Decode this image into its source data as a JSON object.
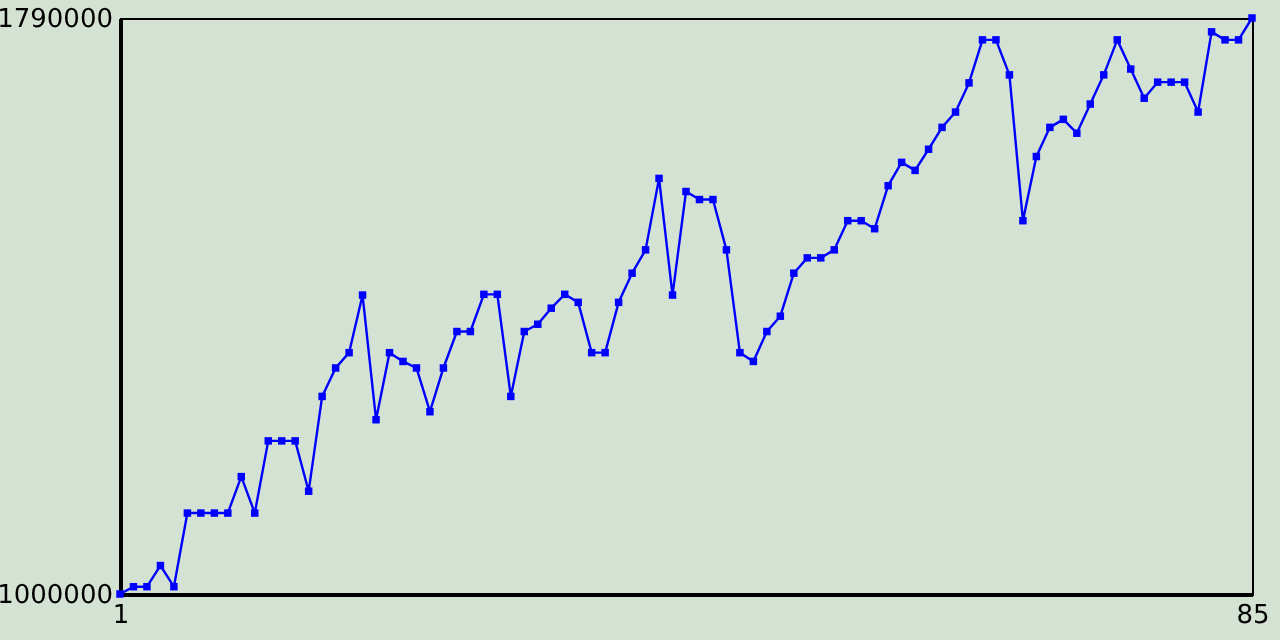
{
  "chart_data": {
    "type": "line",
    "x": [
      1,
      2,
      3,
      4,
      5,
      6,
      7,
      8,
      9,
      10,
      11,
      12,
      13,
      14,
      15,
      16,
      17,
      18,
      19,
      20,
      21,
      22,
      23,
      24,
      25,
      26,
      27,
      28,
      29,
      30,
      31,
      32,
      33,
      34,
      35,
      36,
      37,
      38,
      39,
      40,
      41,
      42,
      43,
      44,
      45,
      46,
      47,
      48,
      49,
      50,
      51,
      52,
      53,
      54,
      55,
      56,
      57,
      58,
      59,
      60,
      61,
      62,
      63,
      64,
      65,
      66,
      67,
      68,
      69,
      70,
      71,
      72,
      73,
      74,
      75,
      76,
      77,
      78,
      79,
      80,
      81,
      82,
      83,
      84,
      85
    ],
    "series": [
      {
        "color": "#0000ff",
        "values": [
          1000000,
          1010000,
          1010000,
          1039000,
          1010000,
          1111000,
          1111000,
          1111000,
          1111000,
          1161000,
          1111000,
          1210000,
          1210000,
          1210000,
          1141000,
          1271000,
          1310000,
          1331000,
          1410000,
          1239000,
          1331000,
          1319000,
          1310000,
          1250000,
          1310000,
          1360000,
          1360000,
          1411000,
          1411000,
          1271000,
          1360000,
          1370000,
          1392000,
          1411000,
          1400000,
          1331000,
          1331000,
          1400000,
          1440000,
          1472000,
          1570000,
          1410000,
          1552000,
          1541000,
          1541000,
          1472000,
          1331000,
          1319000,
          1360000,
          1381000,
          1440000,
          1461000,
          1461000,
          1472000,
          1512000,
          1512000,
          1501000,
          1560000,
          1592000,
          1581000,
          1610000,
          1640000,
          1661000,
          1701000,
          1760000,
          1760000,
          1712000,
          1512000,
          1600000,
          1640000,
          1651000,
          1632000,
          1672000,
          1712000,
          1760000,
          1720000,
          1680000,
          1702000,
          1702000,
          1702000,
          1661000,
          1771000,
          1760000,
          1760000,
          1790000
        ]
      }
    ],
    "xlim": [
      1,
      85
    ],
    "ylim": [
      1000000,
      1790000
    ],
    "xticks": [
      1,
      85
    ],
    "yticks": [
      1000000,
      1790000
    ],
    "marker": "square",
    "line_style": "solid",
    "grid": false
  }
}
